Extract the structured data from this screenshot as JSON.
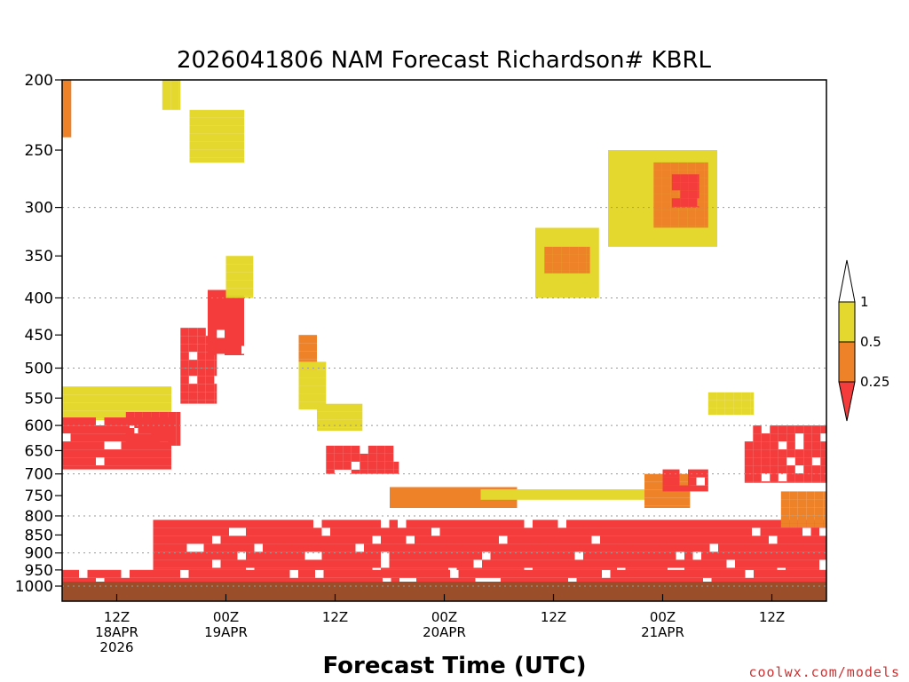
{
  "chart_data": {
    "type": "heatmap",
    "title": "2026041806 NAM Forecast Richardson# KBRL",
    "xlabel": "Forecast Time (UTC)",
    "ylabel": "",
    "x_range_hours": [
      0,
      84
    ],
    "y_axis": "pressure (hPa), log scale",
    "y_range": [
      1000,
      200
    ],
    "y_ticks": [
      200,
      250,
      300,
      350,
      400,
      450,
      500,
      550,
      600,
      650,
      700,
      750,
      800,
      850,
      900,
      950,
      1000
    ],
    "y_gridlines": [
      300,
      400,
      500,
      600,
      700,
      800,
      900,
      1000
    ],
    "x_ticks": [
      {
        "hour": 6,
        "line1": "12Z",
        "line2": "18APR",
        "line3": "2026"
      },
      {
        "hour": 18,
        "line1": "00Z",
        "line2": "19APR",
        "line3": ""
      },
      {
        "hour": 30,
        "line1": "12Z",
        "line2": "",
        "line3": ""
      },
      {
        "hour": 42,
        "line1": "00Z",
        "line2": "20APR",
        "line3": ""
      },
      {
        "hour": 54,
        "line1": "12Z",
        "line2": "",
        "line3": ""
      },
      {
        "hour": 66,
        "line1": "00Z",
        "line2": "21APR",
        "line3": ""
      },
      {
        "hour": 78,
        "line1": "12Z",
        "line2": "",
        "line3": ""
      }
    ],
    "legend": {
      "placement": "right",
      "labels": [
        "1",
        "0.5",
        "0.25"
      ],
      "bins": [
        {
          "range": "0.5 to 1",
          "color": "#e4d82e"
        },
        {
          "range": "0.25 to 0.5",
          "color": "#ee8228"
        },
        {
          "range": "< 0.25",
          "color": "#f43c3c"
        }
      ]
    },
    "colors": {
      "yellow": "#e4d82e",
      "orange": "#ee8228",
      "red": "#f43c3c",
      "ground": "#9a4f2a"
    },
    "regions": [
      {
        "level": 3,
        "hours": [
          0,
          84
        ],
        "p": [
          950,
          1000
        ]
      },
      {
        "level": 3,
        "hours": [
          10,
          84
        ],
        "p": [
          810,
          950
        ]
      },
      {
        "level": 2,
        "hours": [
          36,
          50
        ],
        "p": [
          730,
          780
        ]
      },
      {
        "level": 1,
        "hours": [
          46,
          64
        ],
        "p": [
          735,
          760
        ]
      },
      {
        "level": 3,
        "hours": [
          29,
          37
        ],
        "p": [
          640,
          700
        ]
      },
      {
        "level": 1,
        "hours": [
          28,
          33
        ],
        "p": [
          560,
          610
        ]
      },
      {
        "level": 1,
        "hours": [
          0,
          12
        ],
        "p": [
          530,
          590
        ]
      },
      {
        "level": 3,
        "hours": [
          0,
          12
        ],
        "p": [
          585,
          690
        ]
      },
      {
        "level": 3,
        "hours": [
          7,
          13
        ],
        "p": [
          575,
          640
        ]
      },
      {
        "level": 3,
        "hours": [
          13,
          17
        ],
        "p": [
          440,
          560
        ]
      },
      {
        "level": 3,
        "hours": [
          16,
          20
        ],
        "p": [
          390,
          480
        ]
      },
      {
        "level": 1,
        "hours": [
          18,
          21
        ],
        "p": [
          350,
          400
        ]
      },
      {
        "level": 2,
        "hours": [
          26,
          28
        ],
        "p": [
          450,
          510
        ]
      },
      {
        "level": 1,
        "hours": [
          26,
          29
        ],
        "p": [
          490,
          570
        ]
      },
      {
        "level": 1,
        "hours": [
          11,
          13
        ],
        "p": [
          200,
          220
        ]
      },
      {
        "level": 1,
        "hours": [
          14,
          20
        ],
        "p": [
          220,
          260
        ]
      },
      {
        "level": 2,
        "hours": [
          0,
          1
        ],
        "p": [
          200,
          240
        ]
      },
      {
        "level": 1,
        "hours": [
          52,
          59
        ],
        "p": [
          320,
          400
        ]
      },
      {
        "level": 2,
        "hours": [
          53,
          58
        ],
        "p": [
          340,
          370
        ]
      },
      {
        "level": 1,
        "hours": [
          60,
          72
        ],
        "p": [
          250,
          340
        ]
      },
      {
        "level": 2,
        "hours": [
          65,
          71
        ],
        "p": [
          260,
          320
        ]
      },
      {
        "level": 3,
        "hours": [
          67,
          70
        ],
        "p": [
          270,
          300
        ]
      },
      {
        "level": 1,
        "hours": [
          71,
          76
        ],
        "p": [
          540,
          580
        ]
      },
      {
        "level": 3,
        "hours": [
          75,
          84
        ],
        "p": [
          600,
          720
        ]
      },
      {
        "level": 2,
        "hours": [
          79,
          84
        ],
        "p": [
          740,
          830
        ]
      },
      {
        "level": 2,
        "hours": [
          64,
          69
        ],
        "p": [
          700,
          780
        ]
      },
      {
        "level": 3,
        "hours": [
          66,
          71
        ],
        "p": [
          690,
          740
        ]
      }
    ]
  }
}
